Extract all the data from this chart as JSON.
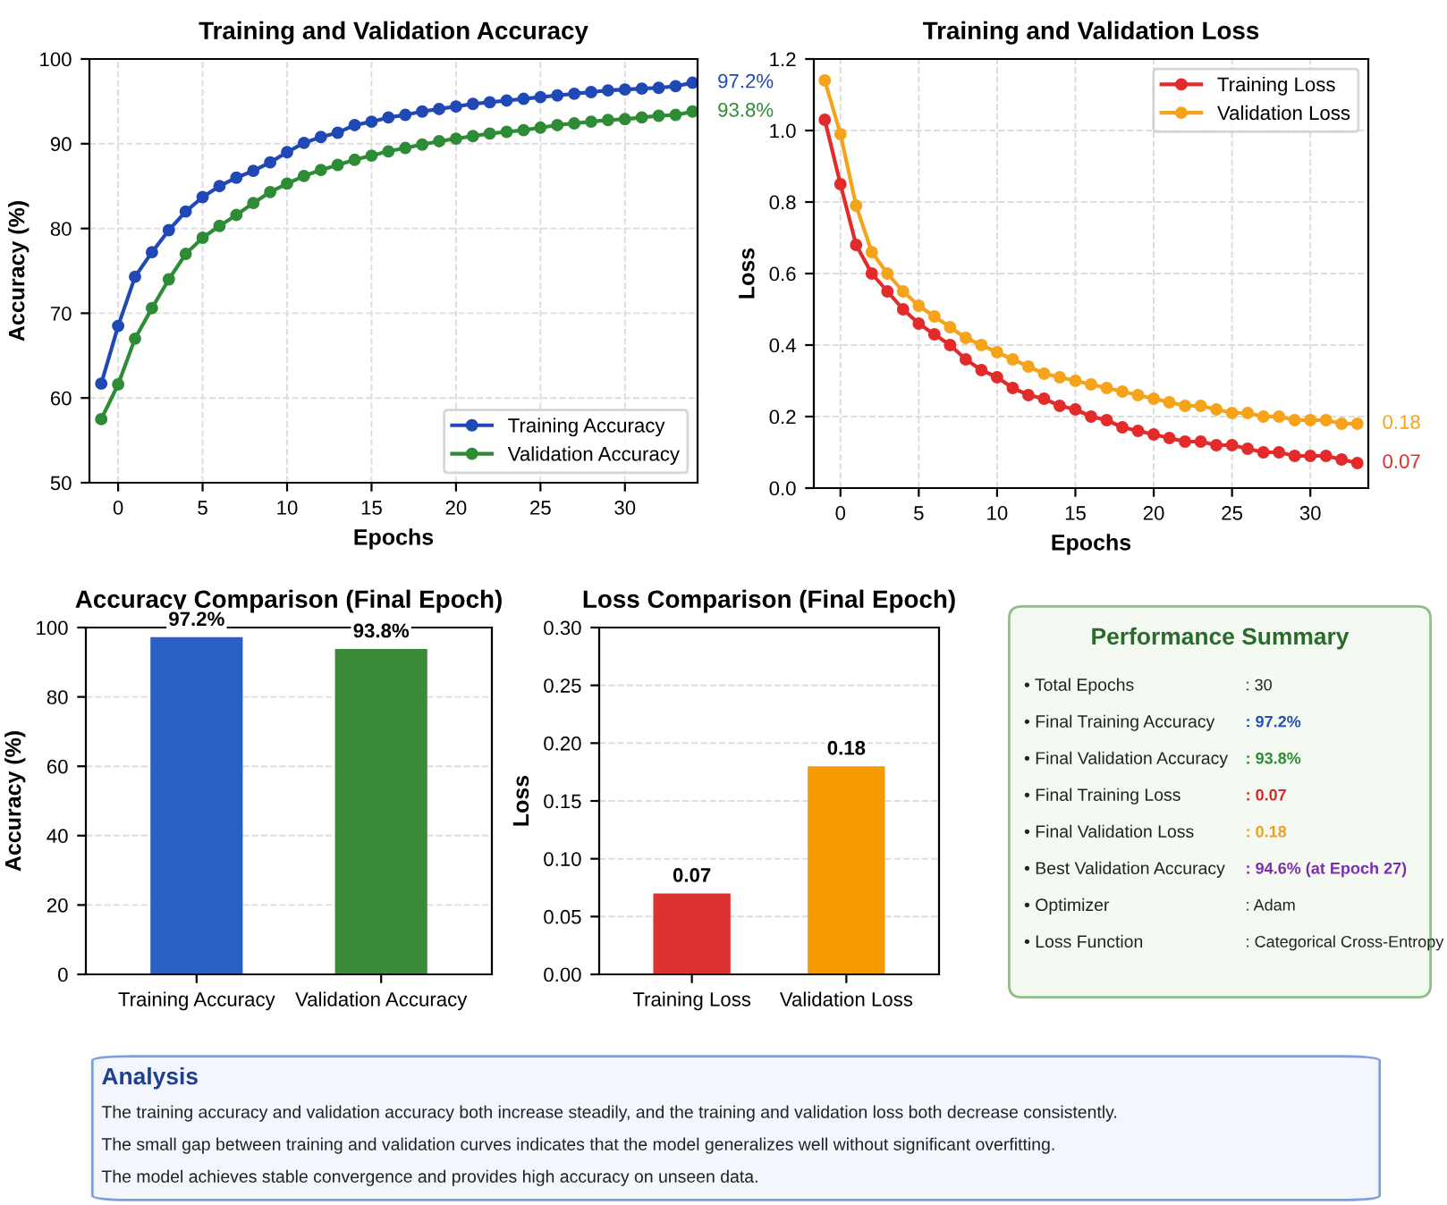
{
  "chart_data": [
    {
      "type": "line",
      "title": "Training and Validation Accuracy",
      "xlabel": "Epochs",
      "ylabel": "Accuracy (%)",
      "x": [
        -1,
        0,
        1,
        2,
        3,
        4,
        5,
        6,
        7,
        8,
        9,
        10,
        11,
        12,
        13,
        14,
        15,
        16,
        17,
        18,
        19,
        20,
        21,
        22,
        23,
        24,
        25,
        26,
        27,
        28,
        29,
        30,
        31,
        32,
        33,
        34
      ],
      "series": [
        {
          "name": "Training Accuracy",
          "color": "#2149b5",
          "values": [
            61.7,
            68.5,
            74.3,
            77.2,
            79.8,
            82.0,
            83.7,
            85.0,
            86.0,
            86.8,
            87.8,
            89.0,
            90.1,
            90.8,
            91.3,
            92.2,
            92.6,
            93.1,
            93.4,
            93.8,
            94.1,
            94.4,
            94.7,
            94.9,
            95.1,
            95.3,
            95.5,
            95.7,
            95.9,
            96.1,
            96.3,
            96.4,
            96.5,
            96.6,
            96.8,
            97.2
          ]
        },
        {
          "name": "Validation Accuracy",
          "color": "#2e8b36",
          "values": [
            57.5,
            61.6,
            67.0,
            70.6,
            74.0,
            77.0,
            78.9,
            80.3,
            81.6,
            83.0,
            84.3,
            85.3,
            86.2,
            86.9,
            87.5,
            88.1,
            88.6,
            89.1,
            89.5,
            89.9,
            90.3,
            90.6,
            90.9,
            91.2,
            91.4,
            91.6,
            91.9,
            92.2,
            92.4,
            92.6,
            92.8,
            92.9,
            93.1,
            93.3,
            93.4,
            93.8
          ]
        }
      ],
      "annotations": [
        "97.2%",
        "93.8%"
      ],
      "xlim": [
        -1.7,
        34.3
      ],
      "xticks": [
        0,
        5,
        10,
        15,
        20,
        25,
        30
      ],
      "ylim": [
        50,
        100
      ],
      "yticks": [
        50,
        60,
        70,
        80,
        90,
        100
      ],
      "grid": true,
      "legend": "bottom right",
      "marker": "circle",
      "line_style": "solid"
    },
    {
      "type": "line",
      "title": "Training and Validation Loss",
      "xlabel": "Epochs",
      "ylabel": "Loss",
      "x": [
        -1,
        0,
        1,
        2,
        3,
        4,
        5,
        6,
        7,
        8,
        9,
        10,
        11,
        12,
        13,
        14,
        15,
        16,
        17,
        18,
        19,
        20,
        21,
        22,
        23,
        24,
        25,
        26,
        27,
        28,
        29,
        30,
        31,
        32,
        33
      ],
      "series": [
        {
          "name": "Training Loss",
          "color": "#e32b2b",
          "values": [
            1.03,
            0.85,
            0.68,
            0.6,
            0.55,
            0.5,
            0.46,
            0.43,
            0.4,
            0.36,
            0.33,
            0.31,
            0.28,
            0.26,
            0.25,
            0.23,
            0.22,
            0.2,
            0.19,
            0.17,
            0.16,
            0.15,
            0.14,
            0.13,
            0.13,
            0.12,
            0.12,
            0.11,
            0.1,
            0.1,
            0.09,
            0.09,
            0.09,
            0.08,
            0.07
          ]
        },
        {
          "name": "Validation Loss",
          "color": "#f5a31a",
          "values": [
            1.14,
            0.99,
            0.79,
            0.66,
            0.6,
            0.55,
            0.51,
            0.48,
            0.45,
            0.42,
            0.4,
            0.38,
            0.36,
            0.34,
            0.32,
            0.31,
            0.3,
            0.29,
            0.28,
            0.27,
            0.26,
            0.25,
            0.24,
            0.23,
            0.23,
            0.22,
            0.21,
            0.21,
            0.2,
            0.2,
            0.19,
            0.19,
            0.19,
            0.18,
            0.18
          ]
        }
      ],
      "annotations": [
        "0.07",
        "0.18"
      ],
      "xlim": [
        -1.7,
        33.7
      ],
      "xticks": [
        0,
        5,
        10,
        15,
        20,
        25,
        30
      ],
      "ylim": [
        0,
        1.2
      ],
      "yticks": [
        {
          "value": 0,
          "label": "0.0"
        },
        {
          "value": 0.2,
          "label": "0.2"
        },
        {
          "value": 0.4,
          "label": "0.4"
        },
        {
          "value": 0.6,
          "label": "0.6"
        },
        {
          "value": 0.8,
          "label": "0.8"
        },
        {
          "value": 1,
          "label": "1.0"
        },
        {
          "value": 1.2,
          "label": "1.2"
        }
      ],
      "grid": true,
      "legend": "top right",
      "marker": "circle",
      "line_style": "solid"
    },
    {
      "type": "bar",
      "title": "Accuracy Comparison (Final Epoch)",
      "ylabel": "Accuracy (%)",
      "categories": [
        "Training Accuracy",
        "Validation Accuracy"
      ],
      "values": [
        97.2,
        93.8
      ],
      "colors": [
        "#2a5fc4",
        "#3a8a3a"
      ],
      "value_labels": [
        "97.2%",
        "93.8%"
      ],
      "ylim": [
        0,
        100
      ],
      "yticks": [
        0,
        20,
        40,
        60,
        80,
        100
      ],
      "grid": "y"
    },
    {
      "type": "bar",
      "title": "Loss Comparison (Final Epoch)",
      "ylabel": "Loss",
      "categories": [
        "Training Loss",
        "Validation Loss"
      ],
      "values": [
        0.07,
        0.18
      ],
      "colors": [
        "#dc3232",
        "#f59a00"
      ],
      "data_labels": true,
      "ylim": [
        0,
        0.3
      ],
      "yticks": [
        {
          "value": 0,
          "label": "0.00"
        },
        {
          "value": 0.05,
          "label": "0.05"
        },
        {
          "value": 0.1,
          "label": "0.10"
        },
        {
          "value": 0.15,
          "label": "0.15"
        },
        {
          "value": 0.2,
          "label": "0.20"
        },
        {
          "value": 0.25,
          "label": "0.25"
        },
        {
          "value": 0.3,
          "label": "0.30"
        }
      ],
      "grid": "y"
    },
    {
      "type": "other",
      "title": "Performance Summary",
      "annotations": [
        "• Total Epochs",
        ": 30",
        "• Final Training Accuracy",
        ": 97.2%",
        "• Final Validation Accuracy",
        ": 93.8%",
        "• Final Training Loss",
        ": 0.07",
        "• Final Validation Loss",
        ": 0.18",
        "• Best Validation Accuracy",
        ": 94.6% (at Epoch 27)",
        "• Optimizer",
        ": Adam",
        "• Loss Function",
        ": Categorical Cross-Entropy"
      ],
      "colors": [
        "#222222",
        "#222222",
        "#222222",
        "#2a4fb5",
        "#222222",
        "#2e8b36",
        "#222222",
        "#d42a2a",
        "#222222",
        "#f0a020",
        "#222222",
        "#7a2fb0",
        "#222222",
        "#222222",
        "#222222",
        "#222222"
      ]
    },
    {
      "type": "other",
      "title": "Analysis",
      "annotations": [
        "The training accuracy and validation accuracy both increase steadily, and the training and validation loss both decrease consistently.",
        "The small gap between training and validation curves indicates that the model generalizes well without significant overfitting.",
        "The model achieves stable convergence and provides high accuracy on unseen data."
      ]
    }
  ]
}
